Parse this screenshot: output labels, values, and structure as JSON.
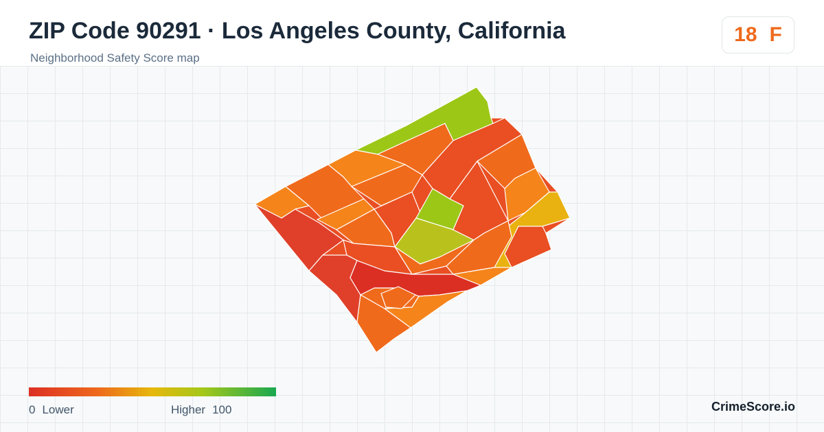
{
  "header": {
    "title": "ZIP Code 90291 · Los Angeles County, California",
    "subtitle": "Neighborhood Safety Score map"
  },
  "score": {
    "value": "18",
    "grade": "F",
    "color": "#ee6a1c"
  },
  "legend": {
    "min_value": "0",
    "min_label": "Lower",
    "max_label": "Higher",
    "max_value": "100",
    "colors": [
      "#dc2f24",
      "#ee6a1c",
      "#e6b80c",
      "#a6c71a",
      "#19a850"
    ]
  },
  "brand": {
    "name": "CrimeScore.io"
  },
  "map": {
    "region_fill_colors": [
      "#e0402a",
      "#e94f23",
      "#f06a1c",
      "#f5841a",
      "#e9b210",
      "#b9c21c",
      "#9cc717"
    ]
  }
}
